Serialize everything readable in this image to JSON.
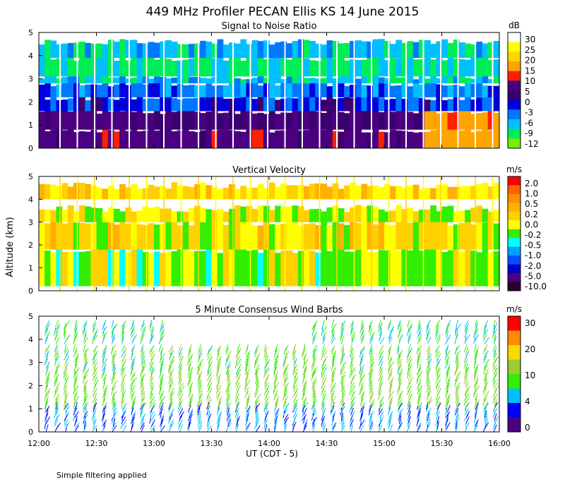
{
  "title": "449 MHz Profiler PECAN Ellis KS 14 June 2015",
  "y_axis_label": "Altitude (km)",
  "x_axis_label": "UT (CDT - 5)",
  "footnote": "Simple filtering applied",
  "colors": {
    "snr_scale": [
      "#ffffff",
      "#ffff00",
      "#ffd700",
      "#ffa500",
      "#ff2000",
      "#4b0082",
      "#3a0070",
      "#0000dd",
      "#0077ff",
      "#00c0ff",
      "#00ee55",
      "#77ee00"
    ],
    "velocity_scale": [
      "#ff0000",
      "#ff6000",
      "#ff9000",
      "#ffb000",
      "#ffd000",
      "#ffff00",
      "#33ee00",
      "#00ffff",
      "#00a0ff",
      "#0050ff",
      "#0000cc",
      "#4b0082",
      "#2a0030"
    ],
    "wind_scale": [
      "#ff0000",
      "#ff8c00",
      "#ffd700",
      "#9acd32",
      "#33ee00",
      "#00bfff",
      "#0000ff",
      "#4b0082"
    ]
  },
  "chart_data": [
    {
      "type": "heatmap",
      "title": "Signal to Noise Ratio",
      "colorbar_unit": "dB",
      "colorbar_ticks": [
        "30",
        "25",
        "20",
        "15",
        "10",
        "5",
        "0",
        "-3",
        "-6",
        "-9",
        "-12"
      ],
      "x_tick_labels": [
        "12:00",
        "12:30",
        "13:00",
        "13:30",
        "14:00",
        "14:30",
        "15:00",
        "15:30",
        "16:00"
      ],
      "y_tick_labels": [
        "0",
        "1",
        "2",
        "3",
        "4",
        "5"
      ],
      "xlim_hours_ut": [
        12,
        16
      ],
      "ylim_km": [
        0,
        5
      ],
      "bands_km_db": [
        {
          "from": 0.0,
          "to": 0.8,
          "snr_db": 5
        },
        {
          "from": 0.8,
          "to": 1.6,
          "snr_db": 3
        },
        {
          "from": 1.6,
          "to": 2.2,
          "snr_db": -3
        },
        {
          "from": 2.2,
          "to": 2.8,
          "snr_db": -6
        },
        {
          "from": 2.8,
          "to": 3.1,
          "snr_db": -9
        },
        {
          "from": 3.1,
          "to": 3.9,
          "snr_db": -12
        },
        {
          "from": 3.9,
          "to": 4.6,
          "snr_db": -9
        }
      ]
    },
    {
      "type": "heatmap",
      "title": "Vertical Velocity",
      "colorbar_unit": "m/s",
      "colorbar_ticks": [
        "2.0",
        "1.0",
        "0.5",
        "0.2",
        "0.0",
        "-0.2",
        "-0.5",
        "-1.0",
        "-2.0",
        "-5.0",
        "-10.0"
      ],
      "x_tick_labels": [
        "12:00",
        "12:30",
        "13:00",
        "13:30",
        "14:00",
        "14:30",
        "15:00",
        "15:30",
        "16:00"
      ],
      "y_tick_labels": [
        "0",
        "1",
        "2",
        "3",
        "4",
        "5"
      ],
      "xlim_hours_ut": [
        12,
        16
      ],
      "ylim_km": [
        0,
        5
      ],
      "bands_km_ms": [
        {
          "from": 0.2,
          "to": 1.8,
          "w_ms": -0.1
        },
        {
          "from": 1.8,
          "to": 3.0,
          "w_ms": 0.1
        },
        {
          "from": 3.0,
          "to": 3.6,
          "w_ms": 0.0
        },
        {
          "from": 4.0,
          "to": 4.6,
          "w_ms": 0.2
        }
      ]
    },
    {
      "type": "wind_barbs",
      "title": "5 Minute Consensus Wind Barbs",
      "colorbar_unit": "m/s",
      "colorbar_ticks": [
        "30",
        "20",
        "10",
        "4",
        "0"
      ],
      "x_tick_labels": [
        "12:00",
        "12:30",
        "13:00",
        "13:30",
        "14:00",
        "14:30",
        "15:00",
        "15:30",
        "16:00"
      ],
      "y_tick_labels": [
        "0",
        "1",
        "2",
        "3",
        "4",
        "5"
      ],
      "xlim_hours_ut": [
        12,
        16
      ],
      "ylim_km": [
        0,
        5
      ],
      "typical_speed_ms_by_layer": [
        {
          "from": 0.0,
          "to": 1.0,
          "speed_ms": 6
        },
        {
          "from": 1.0,
          "to": 2.5,
          "speed_ms": 12
        },
        {
          "from": 2.5,
          "to": 3.5,
          "speed_ms": 11
        },
        {
          "from": 3.8,
          "to": 4.6,
          "speed_ms": 9
        }
      ]
    }
  ]
}
